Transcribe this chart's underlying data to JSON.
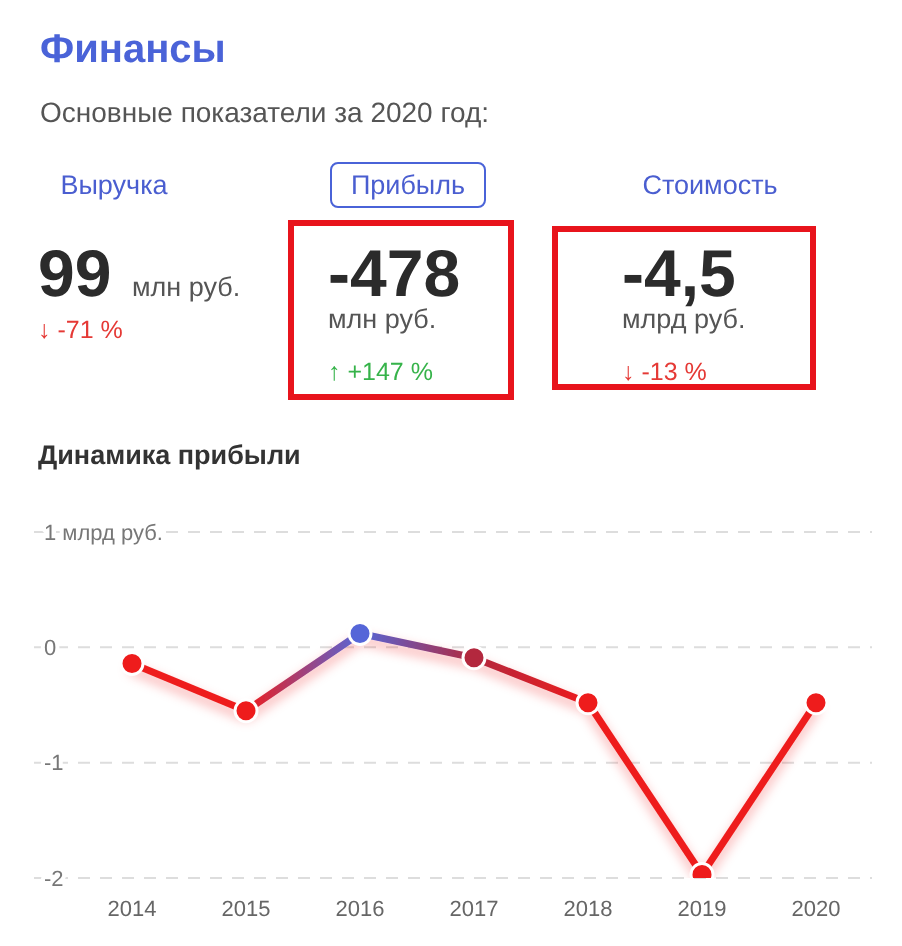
{
  "chart_data": [
    {
      "type": "other",
      "title": "Финансы",
      "subtitle": "Основные показатели за 2020 год:",
      "categories": [
        "Выручка",
        "Прибыль",
        "Стоимость"
      ],
      "annotations": [
        "99",
        "млн руб.",
        "↓ -71 %",
        "-478",
        "млн руб.",
        "↑ +147 %",
        "-4,5",
        "млрд руб.",
        "↓ -13 %"
      ],
      "colors": [
        "#e53935",
        "#36b34a",
        "#e53935"
      ]
    },
    {
      "type": "line",
      "title": "Динамика прибыли",
      "categories": [
        "2014",
        "2015",
        "2016",
        "2017",
        "2018",
        "2019",
        "2020"
      ],
      "series": [
        {
          "color": "#ee1c1c",
          "colors": [
            "#ee1c1c",
            "#ee1c1c",
            "#5566d8",
            "#b3283e",
            "#ee1c1c",
            "#ee1c1c",
            "#ee1c1c"
          ],
          "values": [
            -0.14,
            -0.55,
            0.12,
            -0.09,
            -0.48,
            -1.97,
            -0.48
          ]
        }
      ],
      "ylim": [
        -2,
        1
      ],
      "yticks": [
        {
          "value": 1,
          "label": "1 млрд руб."
        },
        0,
        -1,
        -2
      ],
      "grid": "y",
      "marker": "circle",
      "line_style": "solid"
    }
  ]
}
